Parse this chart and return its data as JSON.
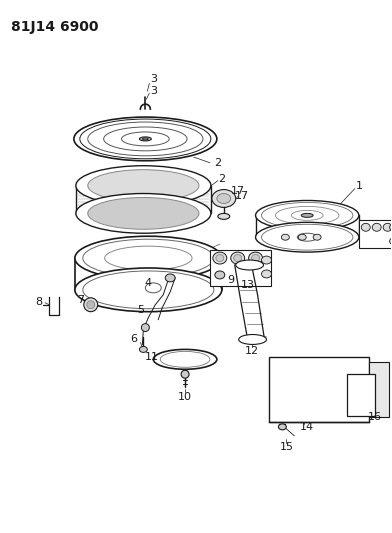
{
  "title": "81J14 6900",
  "bg_color": "#ffffff",
  "line_color": "#1a1a1a",
  "title_fontsize": 10,
  "label_fontsize": 8,
  "figw": 3.92,
  "figh": 5.33,
  "dpi": 100
}
